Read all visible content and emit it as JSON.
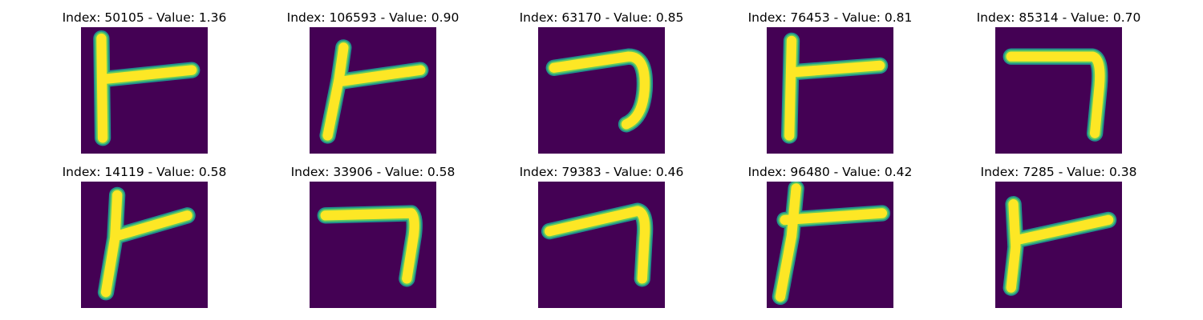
{
  "colors": {
    "background": "#440154",
    "stroke_core": "#fde725",
    "stroke_mid": "#5ec962",
    "stroke_edge": "#21918c"
  },
  "panels": [
    {
      "title": "Index: 50105 - Value: 1.36",
      "glyph": "t-shape"
    },
    {
      "title": "Index: 106593 - Value: 0.90",
      "glyph": "y-shape"
    },
    {
      "title": "Index: 63170 - Value: 0.85",
      "glyph": "seven-curved"
    },
    {
      "title": "Index: 76453 - Value: 0.81",
      "glyph": "t-shape-open"
    },
    {
      "title": "Index: 85314 - Value: 0.70",
      "glyph": "seven-square"
    },
    {
      "title": "Index: 14119 - Value: 0.58",
      "glyph": "y-shape"
    },
    {
      "title": "Index: 33906 - Value: 0.58",
      "glyph": "seven-square"
    },
    {
      "title": "Index: 79383 - Value: 0.46",
      "glyph": "seven-curved"
    },
    {
      "title": "Index: 96480 - Value: 0.42",
      "glyph": "t-cross"
    },
    {
      "title": "Index: 7285 - Value: 0.38",
      "glyph": "t-shape"
    }
  ]
}
